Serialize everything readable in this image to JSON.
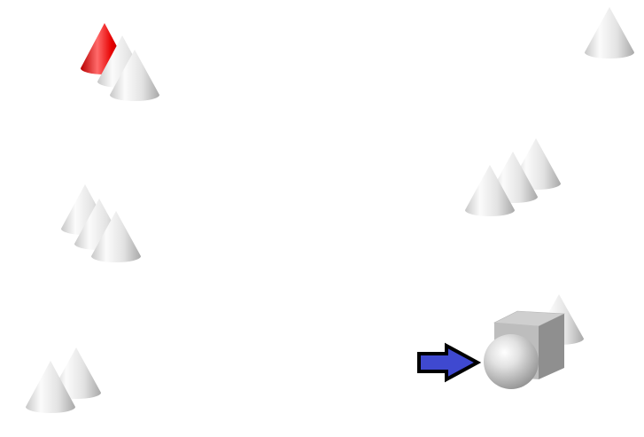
{
  "scene": {
    "background": "#ffffff",
    "colors": {
      "cone_light": "#fbfbfb",
      "cone_mid": "#e3e3e3",
      "cone_dark": "#a9a9a9",
      "cone_red_light": "#ff6a6a",
      "cone_red_mid": "#e60000",
      "cone_red_dark": "#8a0000",
      "cube_top": "#cfcfcf",
      "cube_front": "#bdbdbd",
      "cube_side": "#8f8f8f",
      "sphere_light": "#f2f2f2",
      "sphere_dark": "#8c8c8c",
      "arrow_fill": "#3f49d0",
      "arrow_stroke": "#000000"
    },
    "objects": [
      {
        "name": "red-cone",
        "kind": "cone",
        "color": "red"
      },
      {
        "name": "cone",
        "kind": "cone",
        "color": "gray"
      },
      {
        "name": "cube",
        "kind": "cube",
        "color": "gray"
      },
      {
        "name": "sphere",
        "kind": "sphere",
        "color": "gray"
      },
      {
        "name": "arrow",
        "kind": "arrow",
        "color": "blue",
        "direction": "right"
      }
    ]
  }
}
